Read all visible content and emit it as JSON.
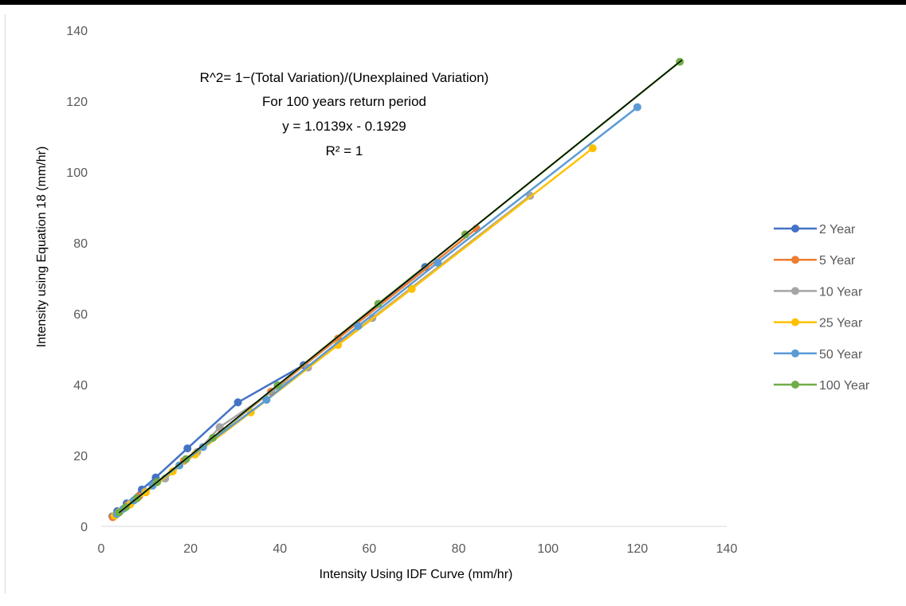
{
  "chart_data": {
    "type": "scatter",
    "title": "",
    "xlabel": "Intensity Using IDF Curve (mm/hr)",
    "ylabel": "Intensity using Equation 18 (mm/hr)",
    "xlim": [
      0,
      140
    ],
    "ylim": [
      0,
      140
    ],
    "x_ticks": [
      "0",
      "20",
      "40",
      "60",
      "80",
      "100",
      "120",
      "140"
    ],
    "y_ticks": [
      "0",
      "20",
      "40",
      "60",
      "80",
      "100",
      "120",
      "140"
    ],
    "grid": false,
    "legend_position": "right",
    "annotation_lines": [
      "R^2= 1−(Total Variation)/(Unexplained Variation)",
      "For 100 years return period",
      "y = 1.0139x - 0.1929",
      "R² = 1"
    ],
    "trendline": {
      "slope": 1.0139,
      "intercept": -0.1929,
      "color": "#000000"
    },
    "series": [
      {
        "name": "2 Year",
        "color": "#4472C4",
        "points": [
          [
            2.5,
            2.8
          ],
          [
            3.6,
            4.3
          ],
          [
            5.7,
            6.5
          ],
          [
            9.1,
            10.4
          ],
          [
            12.2,
            13.8
          ],
          [
            19.3,
            22
          ],
          [
            30.6,
            35
          ],
          [
            45.3,
            45.5
          ],
          [
            72.5,
            73.2
          ]
        ]
      },
      {
        "name": "5 Year",
        "color": "#ED7D31",
        "points": [
          [
            2.6,
            2.6
          ],
          [
            3.1,
            3.1
          ],
          [
            4,
            4
          ],
          [
            6,
            6
          ],
          [
            8.5,
            8.5
          ],
          [
            12.5,
            12.5
          ],
          [
            18.5,
            18.5
          ],
          [
            27,
            27
          ],
          [
            38,
            38
          ],
          [
            53,
            53
          ],
          [
            84,
            84
          ]
        ]
      },
      {
        "name": "10 Year",
        "color": "#A5A5A5",
        "points": [
          [
            3,
            3
          ],
          [
            4.2,
            4.2
          ],
          [
            6.5,
            6.5
          ],
          [
            9.8,
            9.8
          ],
          [
            14.3,
            13.5
          ],
          [
            21.5,
            21
          ],
          [
            26.5,
            28
          ],
          [
            46.3,
            44.8
          ],
          [
            60.7,
            58.8
          ],
          [
            96,
            93.3
          ]
        ]
      },
      {
        "name": "25 Year",
        "color": "#FFC000",
        "points": [
          [
            3,
            3
          ],
          [
            4,
            4
          ],
          [
            6.5,
            6.2
          ],
          [
            10,
            9.6
          ],
          [
            16,
            15.5
          ],
          [
            21,
            20.3
          ],
          [
            33.5,
            32.2
          ],
          [
            53,
            51.2
          ],
          [
            69.5,
            67
          ],
          [
            110,
            106.7
          ]
        ]
      },
      {
        "name": "50 Year",
        "color": "#5B9BD5",
        "points": [
          [
            3.5,
            3.5
          ],
          [
            5,
            5
          ],
          [
            7.3,
            7.3
          ],
          [
            11.5,
            11.5
          ],
          [
            17.5,
            17.2
          ],
          [
            22.8,
            22.4
          ],
          [
            37,
            35.7
          ],
          [
            57.5,
            56.5
          ],
          [
            75.3,
            74.4
          ],
          [
            120,
            118.3
          ]
        ]
      },
      {
        "name": "100 Year",
        "color": "#70AD47",
        "points": [
          [
            4,
            3.9
          ],
          [
            5.5,
            5.4
          ],
          [
            8,
            7.9
          ],
          [
            12.5,
            12.5
          ],
          [
            19,
            19
          ],
          [
            25,
            25
          ],
          [
            39.5,
            39.8
          ],
          [
            62,
            62.8
          ],
          [
            81.5,
            82.4
          ],
          [
            129.5,
            131.1
          ]
        ]
      }
    ]
  }
}
